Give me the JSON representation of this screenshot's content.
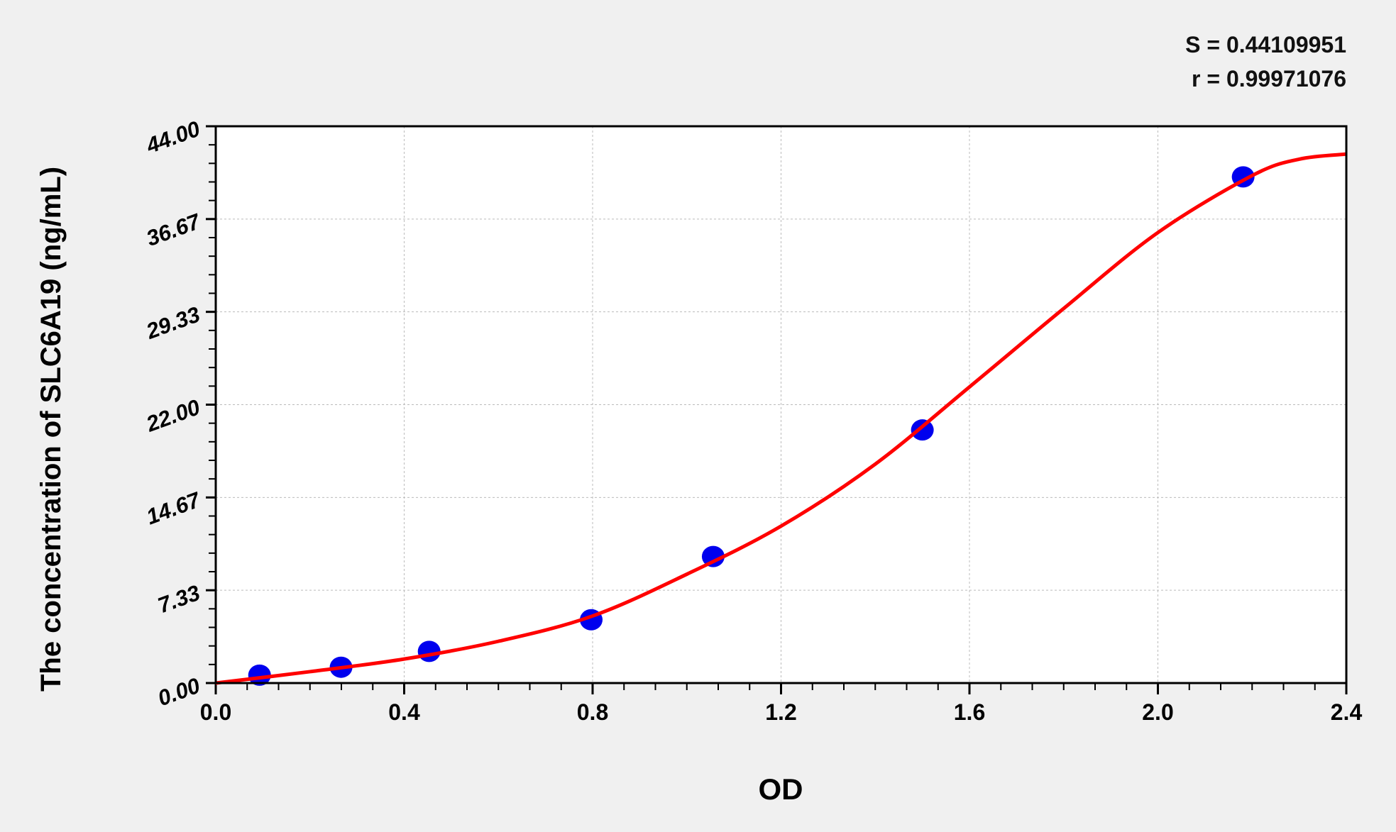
{
  "stats": {
    "s_text": "S = 0.44109951",
    "r_text": "r = 0.99971076"
  },
  "chart_data": {
    "type": "scatter",
    "title": "",
    "xlabel": "OD",
    "ylabel": "The concentration of SLC6A19  (ng/mL)",
    "xlim": [
      0,
      2.4
    ],
    "ylim": [
      0,
      44
    ],
    "x_ticks": [
      "0.0",
      "0.4",
      "0.8",
      "1.2",
      "1.6",
      "2.0",
      "2.4"
    ],
    "y_ticks": [
      "0.00",
      "7.33",
      "14.67",
      "22.00",
      "29.33",
      "36.67",
      "44.00"
    ],
    "grid": true,
    "points": {
      "x": [
        0.093,
        0.266,
        0.453,
        0.797,
        1.056,
        1.5,
        2.181
      ],
      "y": [
        0.625,
        1.25,
        2.5,
        5,
        10,
        20,
        40
      ],
      "color": "#0000ee"
    },
    "fit_curve": {
      "x": [
        0,
        0.2,
        0.4,
        0.6,
        0.8,
        1.0,
        1.2,
        1.4,
        1.6,
        1.8,
        2.0,
        2.2,
        2.3,
        2.4
      ],
      "y": [
        0,
        0.9,
        1.9,
        3.3,
        5.3,
        8.6,
        12.4,
        17.3,
        23.4,
        29.6,
        35.6,
        40.1,
        41.4,
        41.8
      ],
      "color": "#ff0000"
    }
  }
}
